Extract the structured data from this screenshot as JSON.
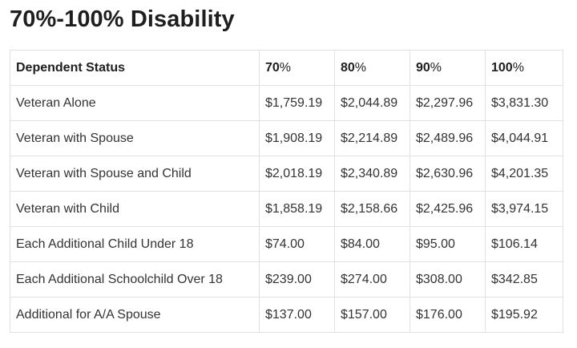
{
  "title": "70%-100% Disability",
  "table": {
    "headers": [
      {
        "label": "Dependent Status"
      },
      {
        "num": "70",
        "pct": "%"
      },
      {
        "num": "80",
        "pct": "%"
      },
      {
        "num": "90",
        "pct": "%"
      },
      {
        "num": "100",
        "pct": "%"
      }
    ],
    "rows": [
      {
        "status": "Veteran Alone",
        "values": [
          "$1,759.19",
          "$2,044.89",
          "$2,297.96",
          "$3,831.30"
        ]
      },
      {
        "status": "Veteran with Spouse",
        "values": [
          "$1,908.19",
          "$2,214.89",
          "$2,489.96",
          "$4,044.91"
        ]
      },
      {
        "status": "Veteran with Spouse and Child",
        "values": [
          "$2,018.19",
          "$2,340.89",
          "$2,630.96",
          "$4,201.35"
        ]
      },
      {
        "status": "Veteran with Child",
        "values": [
          "$1,858.19",
          "$2,158.66",
          "$2,425.96",
          "$3,974.15"
        ]
      },
      {
        "status": "Each Additional Child Under 18",
        "values": [
          "$74.00",
          "$84.00",
          "$95.00",
          "$106.14"
        ]
      },
      {
        "status": "Each Additional Schoolchild Over 18",
        "values": [
          "$239.00",
          "$274.00",
          "$308.00",
          "$342.85"
        ]
      },
      {
        "status": "Additional for A/A Spouse",
        "values": [
          "$137.00",
          "$157.00",
          "$176.00",
          "$195.92"
        ]
      }
    ]
  }
}
